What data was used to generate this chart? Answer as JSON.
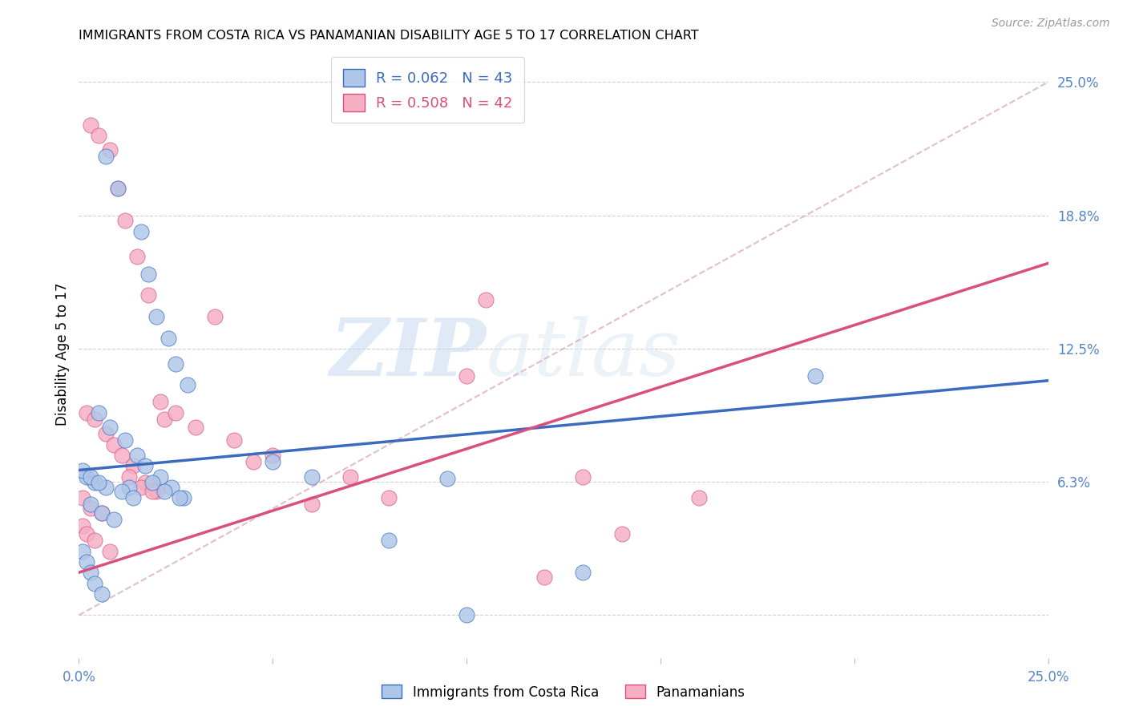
{
  "title": "IMMIGRANTS FROM COSTA RICA VS PANAMANIAN DISABILITY AGE 5 TO 17 CORRELATION CHART",
  "source": "Source: ZipAtlas.com",
  "ylabel": "Disability Age 5 to 17",
  "xlim": [
    0,
    0.25
  ],
  "ylim": [
    -0.02,
    0.265
  ],
  "color_blue": "#aec6e8",
  "color_pink": "#f5aec2",
  "color_line_blue": "#3a6bbf",
  "color_line_pink": "#d94f7e",
  "color_text_right": "#5585c8",
  "color_grid": "#d0d0d0",
  "color_diag": "#d8aab8",
  "watermark_zi": "ZIP",
  "watermark_atlas": "atlas",
  "legend_r1": "R = 0.062",
  "legend_n1": "N = 43",
  "legend_r2": "R = 0.508",
  "legend_n2": "N = 42",
  "blue_x": [
    0.007,
    0.01,
    0.016,
    0.018,
    0.02,
    0.023,
    0.025,
    0.028,
    0.005,
    0.008,
    0.012,
    0.015,
    0.017,
    0.021,
    0.024,
    0.027,
    0.003,
    0.006,
    0.009,
    0.013,
    0.019,
    0.022,
    0.026,
    0.002,
    0.004,
    0.007,
    0.011,
    0.014,
    0.001,
    0.003,
    0.005,
    0.001,
    0.002,
    0.003,
    0.004,
    0.006,
    0.05,
    0.06,
    0.08,
    0.1,
    0.13,
    0.19,
    0.095
  ],
  "blue_y": [
    0.215,
    0.2,
    0.18,
    0.16,
    0.14,
    0.13,
    0.118,
    0.108,
    0.095,
    0.088,
    0.082,
    0.075,
    0.07,
    0.065,
    0.06,
    0.055,
    0.052,
    0.048,
    0.045,
    0.06,
    0.062,
    0.058,
    0.055,
    0.065,
    0.062,
    0.06,
    0.058,
    0.055,
    0.068,
    0.065,
    0.062,
    0.03,
    0.025,
    0.02,
    0.015,
    0.01,
    0.072,
    0.065,
    0.035,
    0.0,
    0.02,
    0.112,
    0.064
  ],
  "pink_x": [
    0.003,
    0.005,
    0.008,
    0.01,
    0.012,
    0.015,
    0.018,
    0.021,
    0.002,
    0.004,
    0.007,
    0.009,
    0.011,
    0.014,
    0.017,
    0.02,
    0.001,
    0.003,
    0.006,
    0.013,
    0.016,
    0.019,
    0.022,
    0.001,
    0.002,
    0.004,
    0.008,
    0.025,
    0.03,
    0.035,
    0.04,
    0.045,
    0.05,
    0.06,
    0.07,
    0.08,
    0.1,
    0.12,
    0.14,
    0.16,
    0.105,
    0.13
  ],
  "pink_y": [
    0.23,
    0.225,
    0.218,
    0.2,
    0.185,
    0.168,
    0.15,
    0.1,
    0.095,
    0.092,
    0.085,
    0.08,
    0.075,
    0.07,
    0.062,
    0.058,
    0.055,
    0.05,
    0.048,
    0.065,
    0.06,
    0.058,
    0.092,
    0.042,
    0.038,
    0.035,
    0.03,
    0.095,
    0.088,
    0.14,
    0.082,
    0.072,
    0.075,
    0.052,
    0.065,
    0.055,
    0.112,
    0.018,
    0.038,
    0.055,
    0.148,
    0.065
  ]
}
